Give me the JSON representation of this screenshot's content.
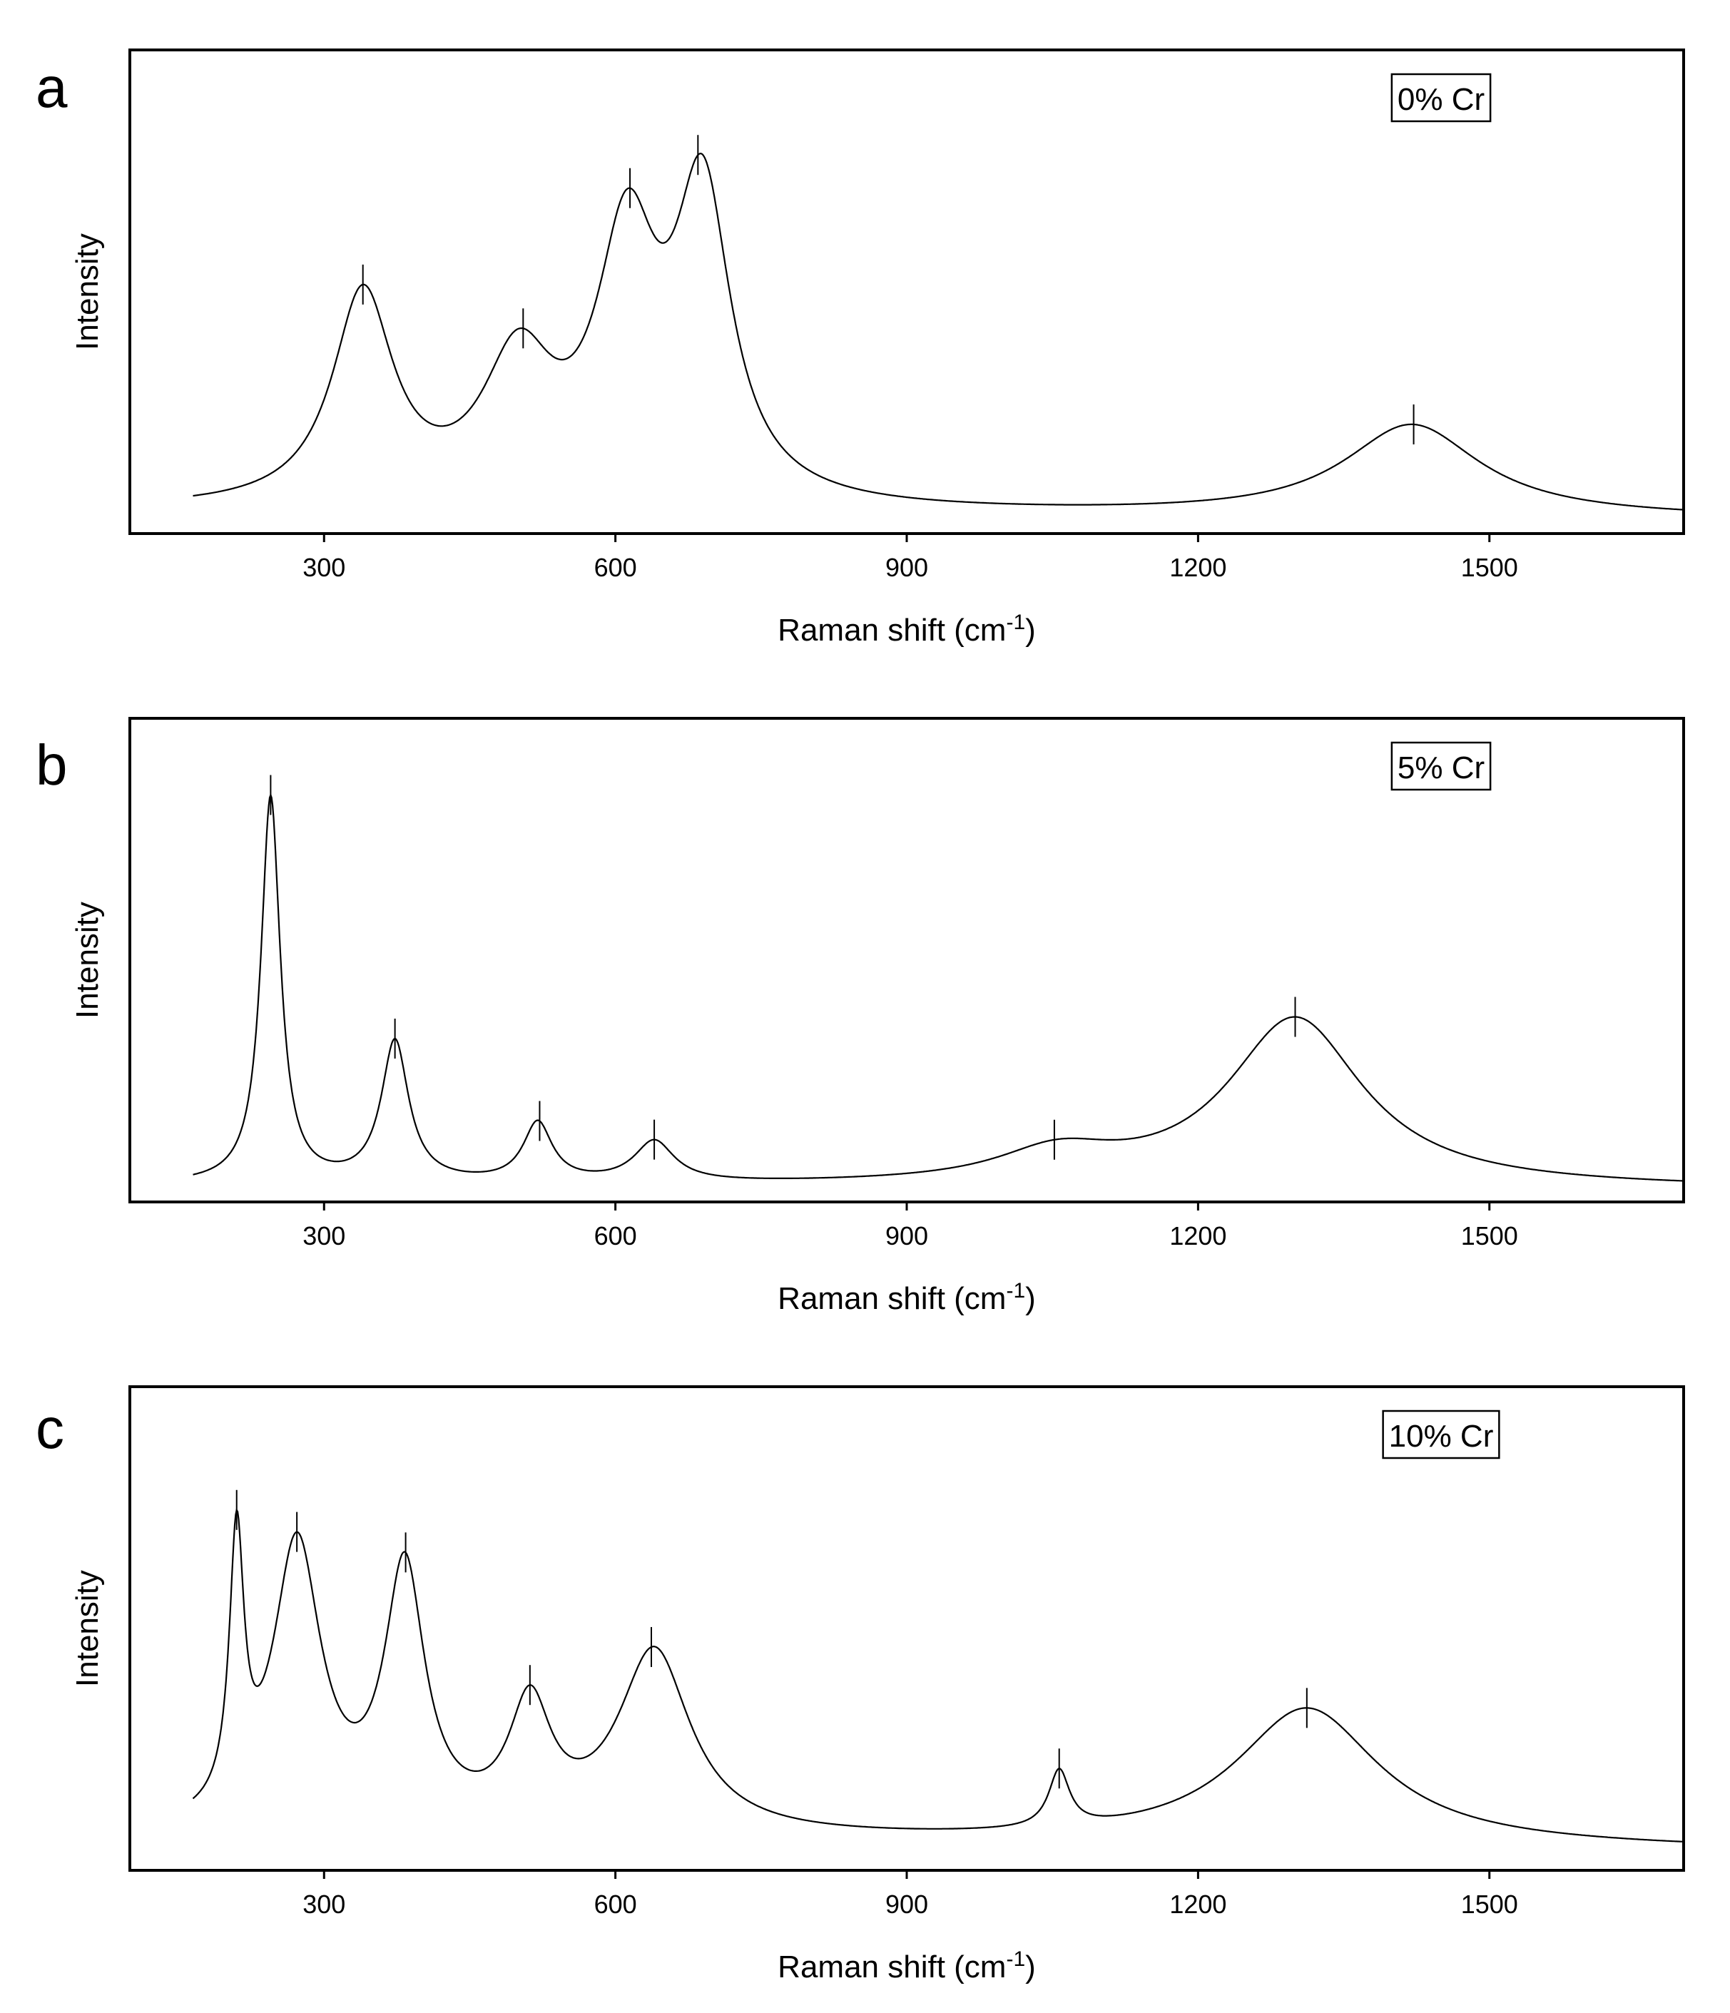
{
  "chart_data": [
    {
      "type": "line",
      "panel_label": "a",
      "legend": "0% Cr",
      "xlabel": "Raman shift (cm",
      "xlabel_sup": "-1",
      "xlabel_end": ")",
      "ylabel": "Intensity",
      "xlim": [
        100,
        1700
      ],
      "ylim": [
        0,
        1
      ],
      "xticks": [
        300,
        600,
        900,
        1200,
        1500
      ],
      "x_start": 165,
      "baseline": [
        0.028,
        0.012
      ],
      "peaks": [
        {
          "center": 340,
          "height": 0.46,
          "width": 38
        },
        {
          "center": 500,
          "height": 0.3,
          "width": 45
        },
        {
          "center": 612,
          "height": 0.55,
          "width": 38
        },
        {
          "center": 690,
          "height": 0.66,
          "width": 35
        },
        {
          "center": 1420,
          "height": 0.2,
          "width": 85
        }
      ],
      "markers": [
        340,
        505,
        615,
        685,
        1422
      ]
    },
    {
      "type": "line",
      "panel_label": "b",
      "legend": "5% Cr",
      "xlabel": "Raman shift (cm",
      "xlabel_sup": "-1",
      "xlabel_end": ")",
      "ylabel": "Intensity",
      "xlim": [
        100,
        1700
      ],
      "ylim": [
        0,
        1
      ],
      "xticks": [
        300,
        600,
        900,
        1200,
        1500
      ],
      "x_start": 165,
      "baseline": [
        0.015,
        0.008
      ],
      "peaks": [
        {
          "center": 245,
          "height": 0.85,
          "width": 12
        },
        {
          "center": 373,
          "height": 0.31,
          "width": 17
        },
        {
          "center": 520,
          "height": 0.13,
          "width": 18
        },
        {
          "center": 640,
          "height": 0.09,
          "width": 25
        },
        {
          "center": 1055,
          "height": 0.065,
          "width": 75
        },
        {
          "center": 1300,
          "height": 0.37,
          "width": 85
        }
      ],
      "markers": [
        245,
        373,
        522,
        640,
        1052,
        1300
      ]
    },
    {
      "type": "line",
      "panel_label": "c",
      "legend": "10% Cr",
      "xlabel": "Raman shift (cm",
      "xlabel_sup": "-1",
      "xlabel_end": ")",
      "ylabel": "Intensity",
      "xlim": [
        100,
        1700
      ],
      "ylim": [
        0,
        1
      ],
      "xticks": [
        300,
        600,
        900,
        1200,
        1500
      ],
      "x_start": 165,
      "baseline": [
        0.055,
        0.025
      ],
      "peaks": [
        {
          "center": 210,
          "height": 0.58,
          "width": 9
        },
        {
          "center": 272,
          "height": 0.62,
          "width": 30
        },
        {
          "center": 383,
          "height": 0.56,
          "width": 25
        },
        {
          "center": 512,
          "height": 0.26,
          "width": 26
        },
        {
          "center": 640,
          "height": 0.4,
          "width": 45
        },
        {
          "center": 1057,
          "height": 0.125,
          "width": 13
        },
        {
          "center": 1312,
          "height": 0.3,
          "width": 90
        }
      ],
      "markers": [
        210,
        272,
        384,
        512,
        637,
        1057,
        1312
      ]
    }
  ]
}
